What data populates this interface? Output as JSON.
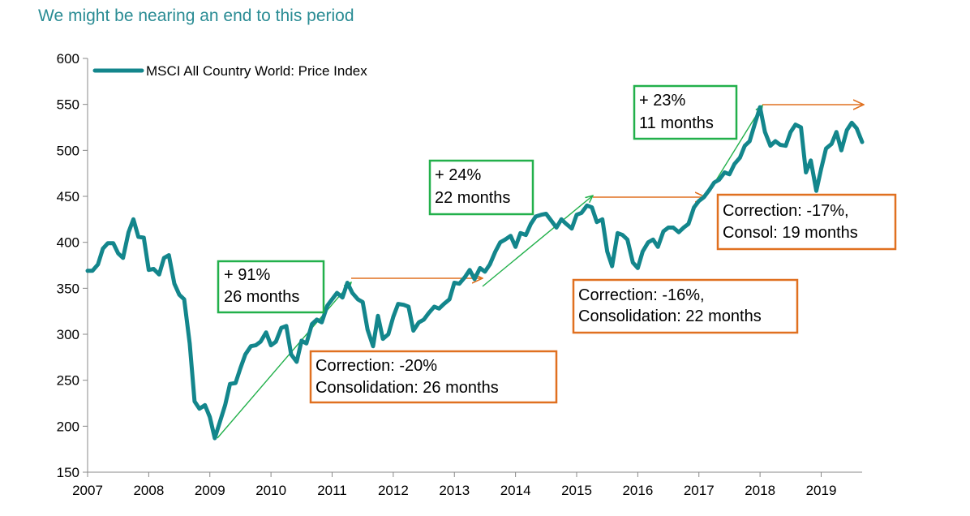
{
  "title": "We might be nearing an end to this period",
  "colors": {
    "title": "#2a8c94",
    "series": "#13868c",
    "green": "#22b04b",
    "orange": "#e07020"
  },
  "chart_data": {
    "type": "line",
    "title": "We might be nearing an end to this period",
    "xlabel": "",
    "ylabel": "",
    "ylim": [
      150,
      600
    ],
    "yticks": [
      150,
      200,
      250,
      300,
      350,
      400,
      450,
      500,
      550,
      600
    ],
    "xlim": [
      2007.0,
      2019.67
    ],
    "xticks": [
      "2007",
      "2008",
      "2009",
      "2010",
      "2011",
      "2012",
      "2013",
      "2014",
      "2015",
      "2016",
      "2017",
      "2018",
      "2019"
    ],
    "grid": false,
    "legend_position": "top-left",
    "series": [
      {
        "name": "MSCI All Country World: Price Index",
        "x": [
          2007.0,
          2007.08,
          2007.17,
          2007.25,
          2007.33,
          2007.42,
          2007.5,
          2007.58,
          2007.67,
          2007.75,
          2007.83,
          2007.92,
          2008.0,
          2008.08,
          2008.17,
          2008.25,
          2008.33,
          2008.42,
          2008.5,
          2008.58,
          2008.67,
          2008.75,
          2008.83,
          2008.92,
          2009.0,
          2009.08,
          2009.17,
          2009.25,
          2009.33,
          2009.42,
          2009.5,
          2009.58,
          2009.67,
          2009.75,
          2009.83,
          2009.92,
          2010.0,
          2010.08,
          2010.17,
          2010.25,
          2010.33,
          2010.42,
          2010.5,
          2010.58,
          2010.67,
          2010.75,
          2010.83,
          2010.92,
          2011.0,
          2011.08,
          2011.17,
          2011.25,
          2011.33,
          2011.42,
          2011.5,
          2011.58,
          2011.67,
          2011.75,
          2011.83,
          2011.92,
          2012.0,
          2012.08,
          2012.17,
          2012.25,
          2012.33,
          2012.42,
          2012.5,
          2012.58,
          2012.67,
          2012.75,
          2012.83,
          2012.92,
          2013.0,
          2013.08,
          2013.17,
          2013.25,
          2013.33,
          2013.42,
          2013.5,
          2013.58,
          2013.67,
          2013.75,
          2013.83,
          2013.92,
          2014.0,
          2014.08,
          2014.17,
          2014.25,
          2014.33,
          2014.42,
          2014.5,
          2014.58,
          2014.67,
          2014.75,
          2014.83,
          2014.92,
          2015.0,
          2015.08,
          2015.17,
          2015.25,
          2015.33,
          2015.42,
          2015.5,
          2015.58,
          2015.67,
          2015.75,
          2015.83,
          2015.92,
          2016.0,
          2016.08,
          2016.17,
          2016.25,
          2016.33,
          2016.42,
          2016.5,
          2016.58,
          2016.67,
          2016.75,
          2016.83,
          2016.92,
          2017.0,
          2017.08,
          2017.17,
          2017.25,
          2017.33,
          2017.42,
          2017.5,
          2017.58,
          2017.67,
          2017.75,
          2017.83,
          2017.92,
          2018.0,
          2018.08,
          2018.17,
          2018.25,
          2018.33,
          2018.42,
          2018.5,
          2018.58,
          2018.67,
          2018.75,
          2018.83,
          2018.92,
          2019.0,
          2019.08,
          2019.17,
          2019.25,
          2019.33,
          2019.42,
          2019.5,
          2019.58,
          2019.67
        ],
        "values": [
          369,
          369,
          376,
          393,
          399,
          399,
          388,
          383,
          411,
          425,
          406,
          405,
          370,
          371,
          365,
          383,
          386,
          355,
          343,
          338,
          290,
          227,
          219,
          223,
          210,
          187,
          206,
          223,
          246,
          247,
          263,
          278,
          287,
          288,
          292,
          302,
          288,
          292,
          307,
          309,
          278,
          270,
          293,
          290,
          311,
          316,
          313,
          331,
          338,
          345,
          340,
          356,
          345,
          338,
          335,
          305,
          287,
          320,
          295,
          300,
          319,
          333,
          332,
          330,
          304,
          313,
          316,
          323,
          330,
          328,
          333,
          338,
          356,
          355,
          362,
          370,
          360,
          372,
          368,
          376,
          390,
          400,
          403,
          407,
          395,
          410,
          408,
          420,
          428,
          430,
          431,
          424,
          416,
          425,
          420,
          415,
          430,
          432,
          440,
          438,
          422,
          425,
          390,
          374,
          410,
          408,
          403,
          378,
          372,
          390,
          400,
          403,
          395,
          412,
          416,
          416,
          411,
          416,
          420,
          438,
          445,
          449,
          457,
          465,
          468,
          476,
          474,
          485,
          492,
          505,
          510,
          530,
          547,
          520,
          505,
          510,
          506,
          505,
          520,
          528,
          525,
          476,
          489,
          456,
          480,
          502,
          507,
          520,
          500,
          522,
          530,
          524,
          509
        ]
      }
    ],
    "annotations": [
      {
        "kind": "rally",
        "line1": "+ 91%",
        "line2": "26 months"
      },
      {
        "kind": "rally",
        "line1": "+ 24%",
        "line2": "22 months"
      },
      {
        "kind": "rally",
        "line1": "+ 23%",
        "line2": "11 months"
      },
      {
        "kind": "correction",
        "line1": "Correction: -20%",
        "line2": "Consolidation: 26 months"
      },
      {
        "kind": "correction",
        "line1": "Correction: -16%,",
        "line2": "Consolidation: 22 months"
      },
      {
        "kind": "correction",
        "line1": "Correction: -17%,",
        "line2": "Consol: 19 months"
      }
    ]
  }
}
